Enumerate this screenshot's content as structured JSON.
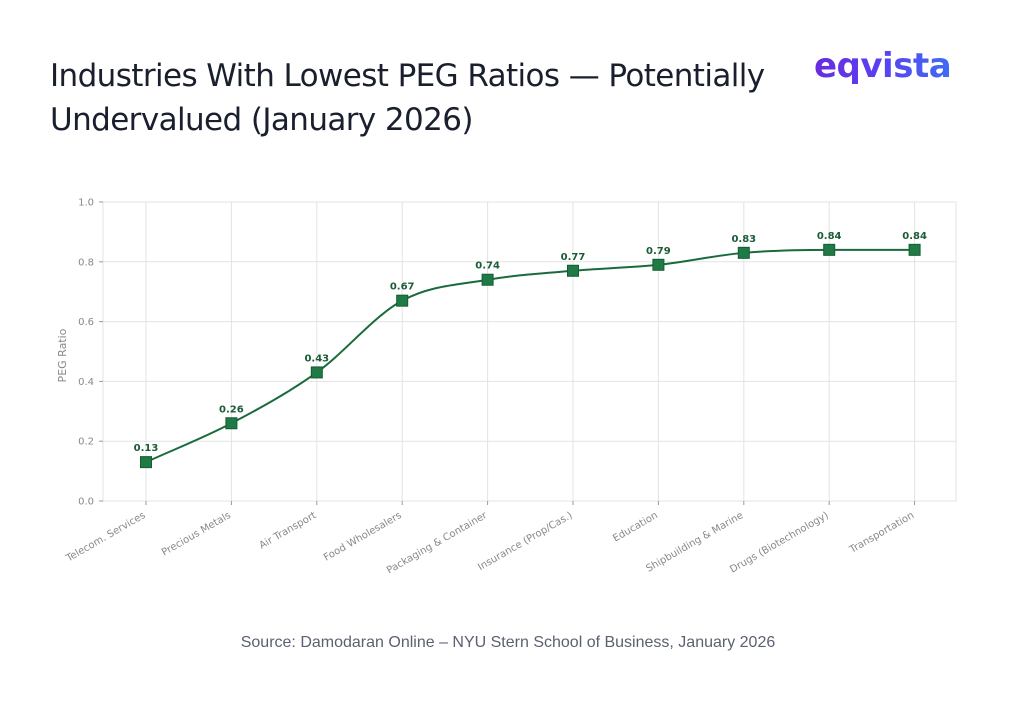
{
  "title": "Industries With Lowest PEG Ratios — Potentially Undervalued (January 2026)",
  "logo": "eqvista",
  "source": "Source: Damodaran Online – NYU Stern School of Business, January 2026",
  "colors": {
    "line": "#1a6b3c",
    "marker": "#1f7a45",
    "label": "#1a5c34",
    "grid": "#e3e3e3",
    "axis_text": "#888888"
  },
  "chart_data": {
    "type": "line",
    "categories": [
      "Telecom. Services",
      "Precious Metals",
      "Air Transport",
      "Food Wholesalers",
      "Packaging & Container",
      "Insurance (Prop/Cas.)",
      "Education",
      "Shipbuilding & Marine",
      "Drugs (Biotechnology)",
      "Transportation"
    ],
    "values": [
      0.13,
      0.26,
      0.43,
      0.67,
      0.74,
      0.77,
      0.79,
      0.83,
      0.84,
      0.84
    ],
    "data_labels": [
      "0.13",
      "0.26",
      "0.43",
      "0.67",
      "0.74",
      "0.77",
      "0.79",
      "0.83",
      "0.84",
      "0.84"
    ],
    "ylabel": "PEG Ratio",
    "xlabel": "",
    "ylim": [
      0,
      1.0
    ],
    "yticks": [
      "0.0",
      "0.2",
      "0.4",
      "0.6",
      "0.8",
      "1.0"
    ],
    "grid": true,
    "smoothed": true
  }
}
